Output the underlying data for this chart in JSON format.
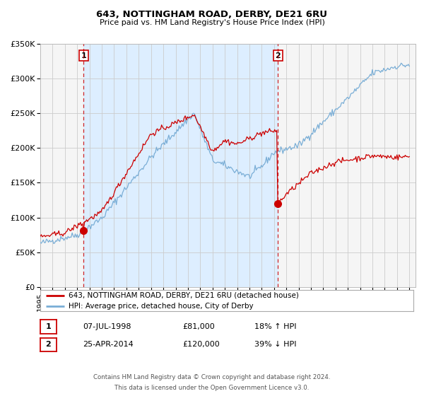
{
  "title": "643, NOTTINGHAM ROAD, DERBY, DE21 6RU",
  "subtitle": "Price paid vs. HM Land Registry's House Price Index (HPI)",
  "ylim": [
    0,
    350000
  ],
  "xlim_start": 1995.0,
  "xlim_end": 2025.5,
  "yticks": [
    0,
    50000,
    100000,
    150000,
    200000,
    250000,
    300000,
    350000
  ],
  "ytick_labels": [
    "£0",
    "£50K",
    "£100K",
    "£150K",
    "£200K",
    "£250K",
    "£300K",
    "£350K"
  ],
  "xtick_years": [
    1995,
    1996,
    1997,
    1998,
    1999,
    2000,
    2001,
    2002,
    2003,
    2004,
    2005,
    2006,
    2007,
    2008,
    2009,
    2010,
    2011,
    2012,
    2013,
    2014,
    2015,
    2016,
    2017,
    2018,
    2019,
    2020,
    2021,
    2022,
    2023,
    2024,
    2025
  ],
  "red_line_color": "#cc0000",
  "blue_line_color": "#7aaed6",
  "shade_color": "#ddeeff",
  "vline_color": "#cc0000",
  "marker1_date": 1998.52,
  "marker1_value": 81000,
  "marker2_date": 2014.32,
  "marker2_value": 120000,
  "vline1_x": 1998.52,
  "vline2_x": 2014.32,
  "shade_x1": 1998.52,
  "shade_x2": 2014.32,
  "legend_red_label": "643, NOTTINGHAM ROAD, DERBY, DE21 6RU (detached house)",
  "legend_blue_label": "HPI: Average price, detached house, City of Derby",
  "annotation1_num": "1",
  "annotation2_num": "2",
  "table_row1": [
    "1",
    "07-JUL-1998",
    "£81,000",
    "18% ↑ HPI"
  ],
  "table_row2": [
    "2",
    "25-APR-2014",
    "£120,000",
    "39% ↓ HPI"
  ],
  "footer1": "Contains HM Land Registry data © Crown copyright and database right 2024.",
  "footer2": "This data is licensed under the Open Government Licence v3.0.",
  "background_color": "#ffffff",
  "plot_bg_color": "#f5f5f5"
}
